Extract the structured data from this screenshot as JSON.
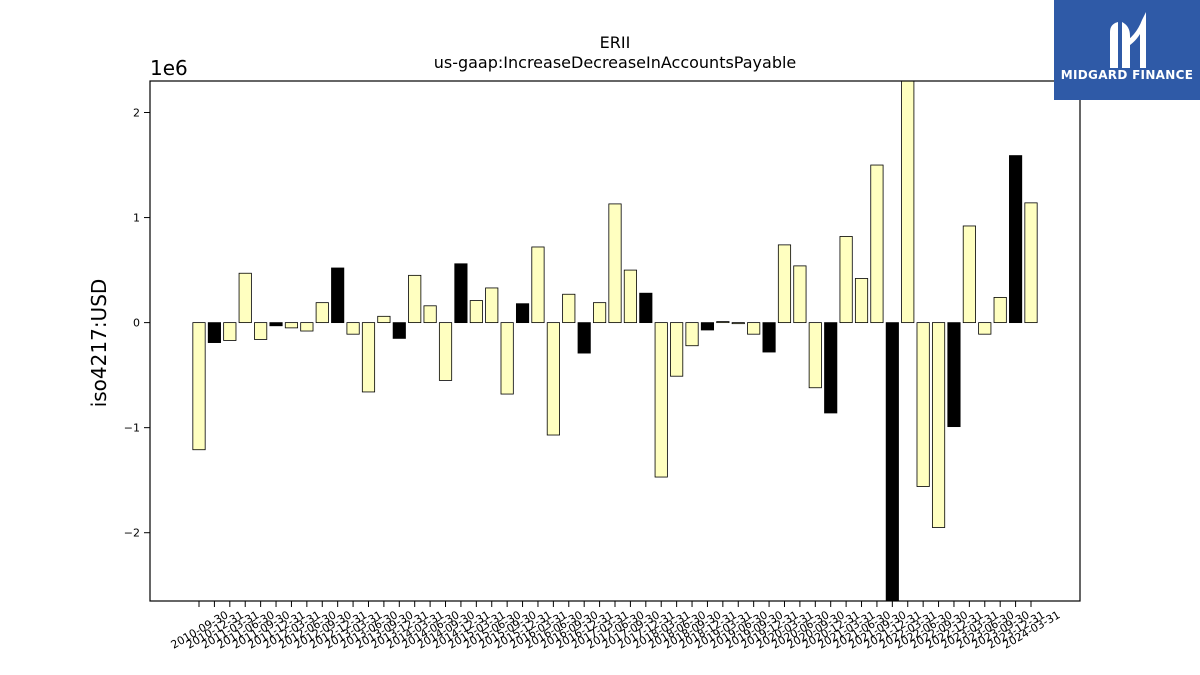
{
  "chart_data": {
    "type": "bar",
    "title": "ERII",
    "subtitle": "us-gaap:IncreaseDecreaseInAccountsPayable",
    "ylabel": "iso4217:USD",
    "xlabel": "",
    "y_scale_label": "1e6",
    "ylim": [
      -2.65,
      2.3
    ],
    "yticks": [
      -2,
      -1,
      0,
      1,
      2
    ],
    "ytick_labels": [
      "−2",
      "−1",
      "0",
      "1",
      "2"
    ],
    "grid": false,
    "colors": {
      "highlight": "#000000",
      "normal": "#ffffc0",
      "edge": "#000000"
    },
    "bars": [
      {
        "x": "2010-09-30",
        "value": -1.21,
        "highlight": false
      },
      {
        "x": "2010-12-31",
        "value": -0.19,
        "highlight": true
      },
      {
        "x": "2011-03-31",
        "value": -0.17,
        "highlight": false
      },
      {
        "x": "2011-06-30",
        "value": 0.47,
        "highlight": false
      },
      {
        "x": "2011-09-30",
        "value": -0.16,
        "highlight": false
      },
      {
        "x": "2011-12-31",
        "value": -0.03,
        "highlight": true
      },
      {
        "x": "2012-03-31",
        "value": -0.05,
        "highlight": false
      },
      {
        "x": "2012-06-30",
        "value": -0.08,
        "highlight": false
      },
      {
        "x": "2012-09-30",
        "value": 0.19,
        "highlight": false
      },
      {
        "x": "2012-12-31",
        "value": 0.52,
        "highlight": true
      },
      {
        "x": "2013-03-31",
        "value": -0.11,
        "highlight": false
      },
      {
        "x": "2013-06-30",
        "value": -0.66,
        "highlight": false
      },
      {
        "x": "2013-09-30",
        "value": 0.06,
        "highlight": false
      },
      {
        "x": "2013-12-31",
        "value": -0.15,
        "highlight": true
      },
      {
        "x": "2014-03-31",
        "value": 0.45,
        "highlight": false
      },
      {
        "x": "2014-06-30",
        "value": 0.16,
        "highlight": false
      },
      {
        "x": "2014-09-30",
        "value": -0.55,
        "highlight": false
      },
      {
        "x": "2014-12-31",
        "value": 0.56,
        "highlight": true
      },
      {
        "x": "2015-03-31",
        "value": 0.21,
        "highlight": false
      },
      {
        "x": "2015-06-30",
        "value": 0.33,
        "highlight": false
      },
      {
        "x": "2015-09-30",
        "value": -0.68,
        "highlight": false
      },
      {
        "x": "2015-12-31",
        "value": 0.18,
        "highlight": true
      },
      {
        "x": "2016-03-31",
        "value": 0.72,
        "highlight": false
      },
      {
        "x": "2016-06-30",
        "value": -1.07,
        "highlight": false
      },
      {
        "x": "2016-09-30",
        "value": 0.27,
        "highlight": false
      },
      {
        "x": "2016-12-31",
        "value": -0.29,
        "highlight": true
      },
      {
        "x": "2017-03-31",
        "value": 0.19,
        "highlight": false
      },
      {
        "x": "2017-06-30",
        "value": 1.13,
        "highlight": false
      },
      {
        "x": "2017-09-30",
        "value": 0.5,
        "highlight": false
      },
      {
        "x": "2017-12-31",
        "value": 0.28,
        "highlight": true
      },
      {
        "x": "2018-03-31",
        "value": -1.47,
        "highlight": false
      },
      {
        "x": "2018-06-30",
        "value": -0.51,
        "highlight": false
      },
      {
        "x": "2018-09-30",
        "value": -0.22,
        "highlight": false
      },
      {
        "x": "2018-12-31",
        "value": -0.07,
        "highlight": true
      },
      {
        "x": "2019-03-31",
        "value": 0.01,
        "highlight": false
      },
      {
        "x": "2019-06-30",
        "value": -0.01,
        "highlight": false
      },
      {
        "x": "2019-09-30",
        "value": -0.11,
        "highlight": false
      },
      {
        "x": "2019-12-31",
        "value": -0.28,
        "highlight": true
      },
      {
        "x": "2020-03-31",
        "value": 0.74,
        "highlight": false
      },
      {
        "x": "2020-06-30",
        "value": 0.54,
        "highlight": false
      },
      {
        "x": "2020-09-30",
        "value": -0.62,
        "highlight": false
      },
      {
        "x": "2020-12-31",
        "value": -0.86,
        "highlight": true
      },
      {
        "x": "2021-03-31",
        "value": 0.82,
        "highlight": false
      },
      {
        "x": "2021-06-30",
        "value": 0.42,
        "highlight": false
      },
      {
        "x": "2021-09-30",
        "value": 1.5,
        "highlight": false
      },
      {
        "x": "2021-12-31",
        "value": -2.65,
        "highlight": true
      },
      {
        "x": "2022-03-31",
        "value": 2.3,
        "highlight": false
      },
      {
        "x": "2022-06-30",
        "value": -1.56,
        "highlight": false
      },
      {
        "x": "2022-09-30",
        "value": -1.95,
        "highlight": false
      },
      {
        "x": "2022-12-31",
        "value": -0.99,
        "highlight": true
      },
      {
        "x": "2023-03-31",
        "value": 0.92,
        "highlight": false
      },
      {
        "x": "2023-06-30",
        "value": -0.11,
        "highlight": false
      },
      {
        "x": "2023-09-30",
        "value": 0.24,
        "highlight": false
      },
      {
        "x": "2023-12-31",
        "value": 1.59,
        "highlight": true
      },
      {
        "x": "2024-03-31",
        "value": 1.14,
        "highlight": false
      }
    ]
  },
  "logo": {
    "text": "MIDGARD FINANCE",
    "icon": "midgard-logo-icon",
    "background": "#2f5aa7"
  }
}
